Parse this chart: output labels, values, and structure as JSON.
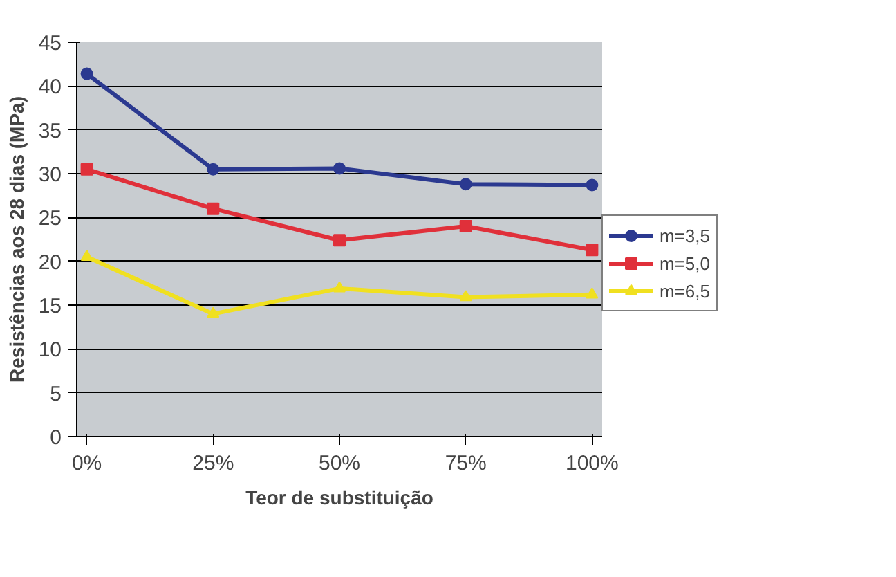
{
  "chart_data": {
    "type": "line",
    "xlabel": "Teor de substituição",
    "ylabel": "Resistências aos 28 dias (MPa)",
    "categories": [
      "0%",
      "25%",
      "50%",
      "75%",
      "100%"
    ],
    "ylim": [
      0,
      45
    ],
    "yticks": [
      0,
      5,
      10,
      15,
      20,
      25,
      30,
      35,
      40,
      45
    ],
    "grid": "y",
    "legend": "right",
    "line_style": "solid",
    "series": [
      {
        "name": "m=3,5",
        "color": "#2b3990",
        "marker": "circle",
        "values": [
          41.4,
          30.5,
          30.6,
          28.8,
          28.7
        ]
      },
      {
        "name": "m=5,0",
        "color": "#e0303a",
        "marker": "square",
        "values": [
          30.5,
          26.0,
          22.4,
          24.0,
          21.3
        ]
      },
      {
        "name": "m=6,5",
        "color": "#f0e020",
        "marker": "triangle",
        "values": [
          20.5,
          14.0,
          16.9,
          15.9,
          16.2
        ]
      }
    ]
  }
}
